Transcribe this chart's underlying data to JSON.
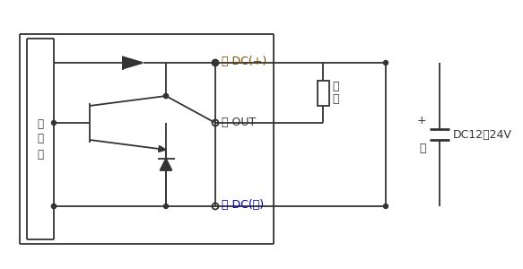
{
  "bg_color": "#ffffff",
  "line_color": "#333333",
  "fig_width": 5.83,
  "fig_height": 3.0,
  "dpi": 100,
  "labels": {
    "main_box": "主\n回\n路",
    "brown_dc": "茶 DC(+)",
    "black_out": "黒 OUT",
    "blue_dc": "青 DC(－)",
    "load": "負\n荷",
    "voltage": "DC12～24V",
    "plus": "＋",
    "minus": "－"
  },
  "colors": {
    "brown": "#7B4A00",
    "blue": "#0000AA",
    "black": "#333333"
  }
}
